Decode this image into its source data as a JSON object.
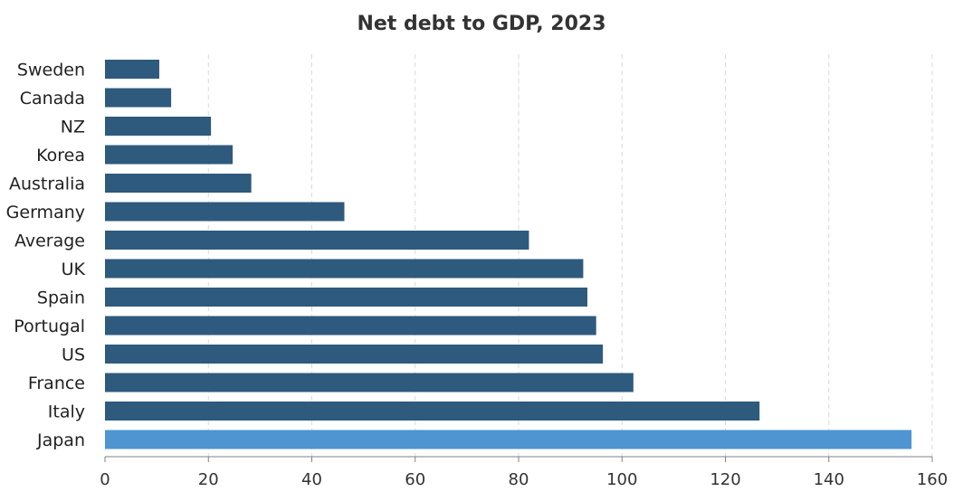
{
  "chart_data": {
    "type": "bar",
    "orientation": "horizontal",
    "title": "Net debt to GDP, 2023",
    "xlabel": "",
    "ylabel": "",
    "categories": [
      "Sweden",
      "Canada",
      "NZ",
      "Korea",
      "Australia",
      "Germany",
      "Average",
      "UK",
      "Spain",
      "Portugal",
      "US",
      "France",
      "Italy",
      "Japan"
    ],
    "values": [
      10.5,
      12.8,
      20.5,
      24.7,
      28.3,
      46.3,
      82.0,
      92.5,
      93.3,
      95.0,
      96.3,
      102.2,
      126.6,
      156.0
    ],
    "xlim": [
      0,
      160
    ],
    "xticks": [
      0,
      20,
      40,
      60,
      80,
      100,
      120,
      140,
      160
    ],
    "grid": "vertical dashed",
    "legend": "none",
    "colors": {
      "bar": "#2E5A7E",
      "highlight": "#4E95D1",
      "highlight_category": "Japan",
      "grid": "#D9D9D9",
      "axis": "#808080"
    }
  }
}
